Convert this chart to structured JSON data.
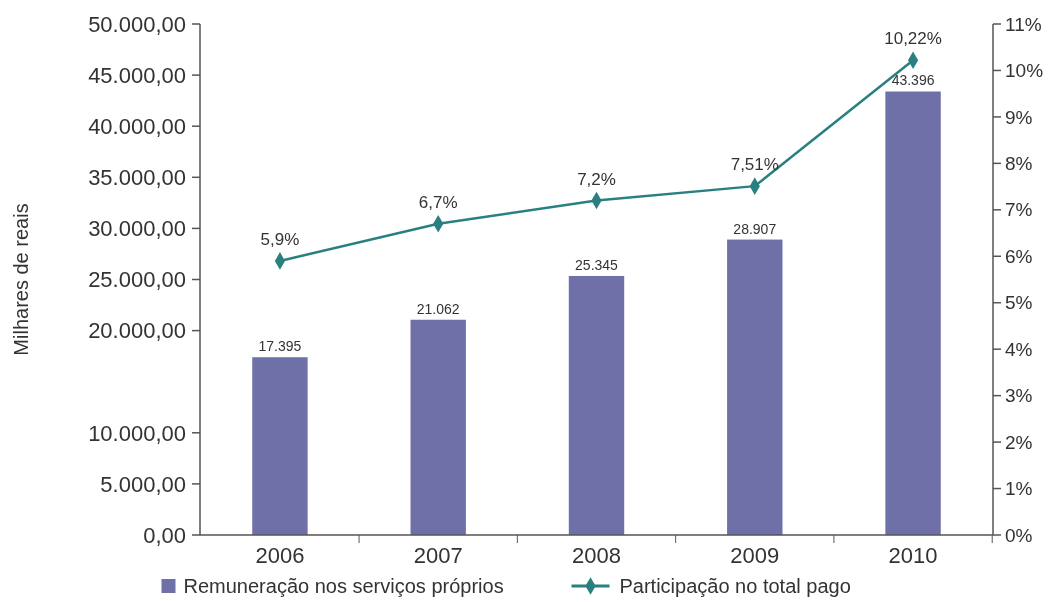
{
  "chart_data": {
    "type": "bar",
    "ylabel": "Milhares de reais",
    "categories": [
      "2006",
      "2007",
      "2008",
      "2009",
      "2010"
    ],
    "series": [
      {
        "name": "Remuneração nos serviços próprios",
        "color": "#7070a8",
        "values": [
          17395,
          21062,
          25345,
          28907,
          43396
        ],
        "value_labels": [
          "17.395",
          "21.062",
          "25.345",
          "28.907",
          "43.396"
        ]
      },
      {
        "name": "Participação no total pago",
        "type": "line",
        "axis": "y2",
        "color": "#2a8080",
        "marker": "diamond",
        "values": [
          5.9,
          6.7,
          7.2,
          7.51,
          10.22
        ],
        "value_labels": [
          "5,9%",
          "6,7%",
          "7,2%",
          "7,51%",
          "10,22%"
        ]
      }
    ],
    "ylim": [
      0,
      50000
    ],
    "yticks": [
      {
        "value": 0,
        "label": "0,00"
      },
      {
        "value": 5000,
        "label": "5.000,00"
      },
      {
        "value": 10000,
        "label": "10.000,00"
      },
      {
        "value": 20000,
        "label": "20.000,00"
      },
      {
        "value": 25000,
        "label": "25.000,00"
      },
      {
        "value": 30000,
        "label": "30.000,00"
      },
      {
        "value": 35000,
        "label": "35.000,00"
      },
      {
        "value": 40000,
        "label": "40.000,00"
      },
      {
        "value": 45000,
        "label": "45.000,00"
      },
      {
        "value": 50000,
        "label": "50.000,00"
      }
    ],
    "y2lim": [
      0,
      11
    ],
    "y2ticks": [
      {
        "value": 0,
        "label": "0%"
      },
      {
        "value": 1,
        "label": "1%"
      },
      {
        "value": 2,
        "label": "2%"
      },
      {
        "value": 3,
        "label": "3%"
      },
      {
        "value": 4,
        "label": "4%"
      },
      {
        "value": 5,
        "label": "5%"
      },
      {
        "value": 6,
        "label": "6%"
      },
      {
        "value": 7,
        "label": "7%"
      },
      {
        "value": 8,
        "label": "8%"
      },
      {
        "value": 9,
        "label": "9%"
      },
      {
        "value": 10,
        "label": "10%"
      },
      {
        "value": 11,
        "label": "11%"
      }
    ],
    "legend": "bottom",
    "grid": false
  }
}
